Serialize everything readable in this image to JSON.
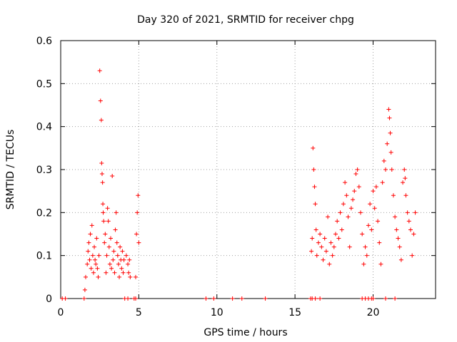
{
  "chart_data": {
    "type": "scatter",
    "title": "Day 320 of 2021, SRMTID for receiver chpg",
    "xlabel": "GPS time / hours",
    "ylabel": "SRMTID / TECUs",
    "xlim": [
      0,
      24
    ],
    "ylim": [
      0,
      0.6
    ],
    "x_ticks": [
      0,
      5,
      10,
      15,
      20
    ],
    "x_tick_labels": [
      "0",
      "5",
      "10",
      "15",
      "20"
    ],
    "y_ticks": [
      0,
      0.1,
      0.2,
      0.3,
      0.4,
      0.5,
      0.6
    ],
    "y_tick_labels": [
      "0",
      "0.1",
      "0.2",
      "0.3",
      "0.4",
      "0.5",
      "0.6"
    ],
    "grid": true,
    "marker": "plus",
    "color": "#ff0000",
    "series": [
      {
        "name": "SRMTID",
        "points": [
          [
            0.1,
            0
          ],
          [
            0.3,
            0
          ],
          [
            1.5,
            0
          ],
          [
            1.55,
            0.02
          ],
          [
            4.1,
            0
          ],
          [
            4.3,
            0
          ],
          [
            4.7,
            0
          ],
          [
            4.8,
            0
          ],
          [
            9.3,
            0
          ],
          [
            9.8,
            0
          ],
          [
            11.0,
            0
          ],
          [
            11.6,
            0
          ],
          [
            13.1,
            0
          ],
          [
            16.0,
            0
          ],
          [
            16.1,
            0
          ],
          [
            16.3,
            0
          ],
          [
            16.6,
            0
          ],
          [
            19.3,
            0
          ],
          [
            19.5,
            0
          ],
          [
            19.7,
            0
          ],
          [
            19.9,
            0
          ],
          [
            20.0,
            0
          ],
          [
            20.8,
            0
          ],
          [
            21.4,
            0
          ],
          [
            1.6,
            0.05
          ],
          [
            1.7,
            0.08
          ],
          [
            1.75,
            0.11
          ],
          [
            1.8,
            0.13
          ],
          [
            1.85,
            0.09
          ],
          [
            1.9,
            0.15
          ],
          [
            1.95,
            0.07
          ],
          [
            2.0,
            0.17
          ],
          [
            2.05,
            0.1
          ],
          [
            2.1,
            0.06
          ],
          [
            2.15,
            0.12
          ],
          [
            2.2,
            0.09
          ],
          [
            2.25,
            0.08
          ],
          [
            2.3,
            0.14
          ],
          [
            2.35,
            0.07
          ],
          [
            2.4,
            0.05
          ],
          [
            2.45,
            0.1
          ],
          [
            2.5,
            0.53
          ],
          [
            2.55,
            0.46
          ],
          [
            2.6,
            0.415
          ],
          [
            2.62,
            0.315
          ],
          [
            2.65,
            0.29
          ],
          [
            2.68,
            0.27
          ],
          [
            2.7,
            0.22
          ],
          [
            2.72,
            0.2
          ],
          [
            2.75,
            0.18
          ],
          [
            2.8,
            0.13
          ],
          [
            2.85,
            0.15
          ],
          [
            2.9,
            0.06
          ],
          [
            2.95,
            0.1
          ],
          [
            3.0,
            0.21
          ],
          [
            3.05,
            0.18
          ],
          [
            3.1,
            0.12
          ],
          [
            3.15,
            0.08
          ],
          [
            3.2,
            0.14
          ],
          [
            3.25,
            0.07
          ],
          [
            3.3,
            0.285
          ],
          [
            3.35,
            0.09
          ],
          [
            3.4,
            0.11
          ],
          [
            3.45,
            0.06
          ],
          [
            3.5,
            0.16
          ],
          [
            3.55,
            0.2
          ],
          [
            3.6,
            0.13
          ],
          [
            3.65,
            0.1
          ],
          [
            3.7,
            0.08
          ],
          [
            3.75,
            0.05
          ],
          [
            3.8,
            0.12
          ],
          [
            3.85,
            0.09
          ],
          [
            3.9,
            0.07
          ],
          [
            3.95,
            0.11
          ],
          [
            4.0,
            0.06
          ],
          [
            4.05,
            0.09
          ],
          [
            4.2,
            0.1
          ],
          [
            4.3,
            0.08
          ],
          [
            4.35,
            0.06
          ],
          [
            4.4,
            0.09
          ],
          [
            4.45,
            0.05
          ],
          [
            4.8,
            0.05
          ],
          [
            4.85,
            0.15
          ],
          [
            4.9,
            0.2
          ],
          [
            4.95,
            0.24
          ],
          [
            5.0,
            0.13
          ],
          [
            16.05,
            0.11
          ],
          [
            16.1,
            0.14
          ],
          [
            16.15,
            0.35
          ],
          [
            16.2,
            0.3
          ],
          [
            16.25,
            0.26
          ],
          [
            16.3,
            0.22
          ],
          [
            16.35,
            0.16
          ],
          [
            16.4,
            0.1
          ],
          [
            16.5,
            0.13
          ],
          [
            16.6,
            0.15
          ],
          [
            16.7,
            0.12
          ],
          [
            16.8,
            0.09
          ],
          [
            16.9,
            0.14
          ],
          [
            17.0,
            0.11
          ],
          [
            17.1,
            0.19
          ],
          [
            17.2,
            0.08
          ],
          [
            17.3,
            0.13
          ],
          [
            17.4,
            0.1
          ],
          [
            17.5,
            0.12
          ],
          [
            17.6,
            0.15
          ],
          [
            17.7,
            0.18
          ],
          [
            17.8,
            0.14
          ],
          [
            17.9,
            0.2
          ],
          [
            18.0,
            0.16
          ],
          [
            18.1,
            0.22
          ],
          [
            18.2,
            0.27
          ],
          [
            18.3,
            0.24
          ],
          [
            18.4,
            0.19
          ],
          [
            18.5,
            0.12
          ],
          [
            18.6,
            0.21
          ],
          [
            18.7,
            0.23
          ],
          [
            18.8,
            0.25
          ],
          [
            18.9,
            0.29
          ],
          [
            19.0,
            0.3
          ],
          [
            19.1,
            0.26
          ],
          [
            19.2,
            0.2
          ],
          [
            19.3,
            0.15
          ],
          [
            19.4,
            0.08
          ],
          [
            19.5,
            0.12
          ],
          [
            19.6,
            0.1
          ],
          [
            19.7,
            0.17
          ],
          [
            19.8,
            0.22
          ],
          [
            19.9,
            0.16
          ],
          [
            20.0,
            0.25
          ],
          [
            20.1,
            0.21
          ],
          [
            20.2,
            0.26
          ],
          [
            20.3,
            0.18
          ],
          [
            20.4,
            0.13
          ],
          [
            20.5,
            0.08
          ],
          [
            20.6,
            0.27
          ],
          [
            20.7,
            0.32
          ],
          [
            20.8,
            0.3
          ],
          [
            20.9,
            0.36
          ],
          [
            21.0,
            0.44
          ],
          [
            21.05,
            0.42
          ],
          [
            21.1,
            0.385
          ],
          [
            21.15,
            0.34
          ],
          [
            21.2,
            0.3
          ],
          [
            21.3,
            0.24
          ],
          [
            21.4,
            0.19
          ],
          [
            21.5,
            0.16
          ],
          [
            21.6,
            0.14
          ],
          [
            21.7,
            0.12
          ],
          [
            21.8,
            0.09
          ],
          [
            21.9,
            0.27
          ],
          [
            22.0,
            0.3
          ],
          [
            22.05,
            0.28
          ],
          [
            22.1,
            0.24
          ],
          [
            22.2,
            0.2
          ],
          [
            22.3,
            0.18
          ],
          [
            22.4,
            0.16
          ],
          [
            22.5,
            0.1
          ],
          [
            22.6,
            0.15
          ],
          [
            22.7,
            0.2
          ]
        ]
      }
    ]
  }
}
